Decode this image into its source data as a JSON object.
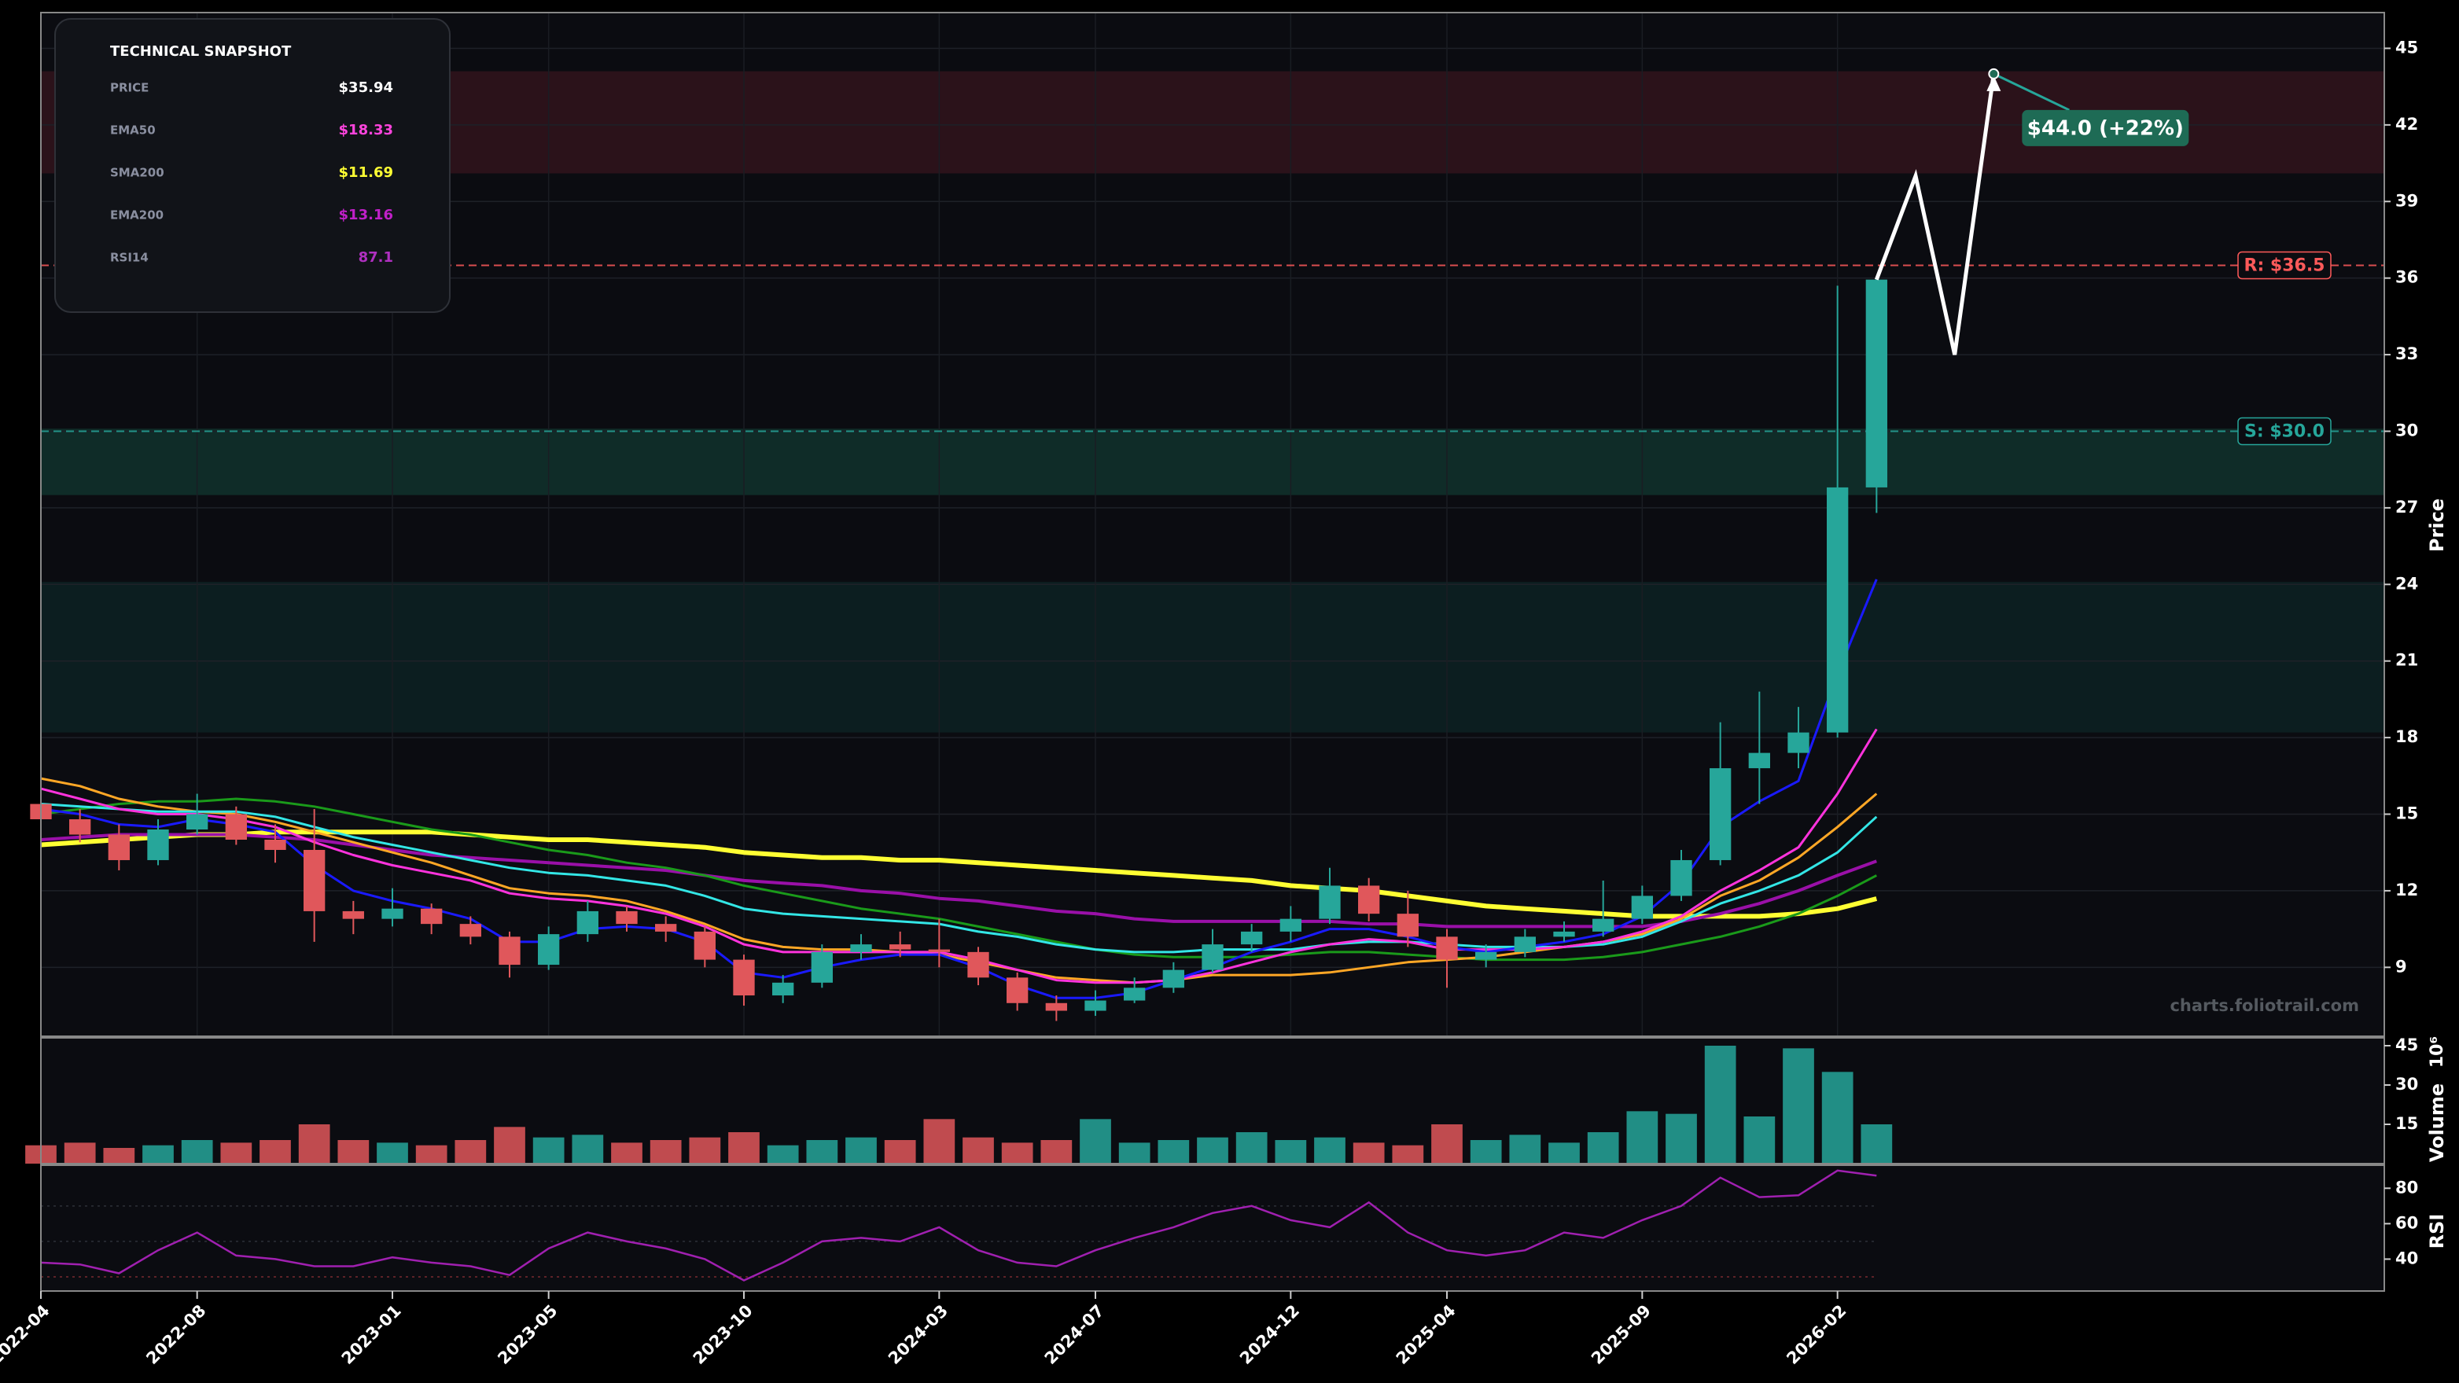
{
  "chart_data": {
    "type": "candlestick",
    "ylabel": "Price",
    "watermark": "charts.foliotrail.com",
    "up_color": "#26a69a",
    "down_color": "#e0575b",
    "grid": true,
    "xlim": [
      "2022-04",
      "2027-04"
    ],
    "xticks": [
      "2022-04",
      "2022-08",
      "2023-01",
      "2023-05",
      "2023-10",
      "2024-03",
      "2024-07",
      "2024-12",
      "2025-04",
      "2025-09",
      "2026-02"
    ],
    "ylim": [
      6.3,
      46.4
    ],
    "yticks": [
      9,
      12,
      15,
      18,
      21,
      24,
      27,
      30,
      33,
      36,
      39,
      42,
      45
    ],
    "x": [
      "2022-04",
      "2022-05",
      "2022-06",
      "2022-07",
      "2022-08",
      "2022-09",
      "2022-10",
      "2022-11",
      "2022-12",
      "2023-01",
      "2023-02",
      "2023-03",
      "2023-04",
      "2023-05",
      "2023-06",
      "2023-07",
      "2023-08",
      "2023-09",
      "2023-10",
      "2023-11",
      "2023-12",
      "2024-01",
      "2024-02",
      "2024-03",
      "2024-04",
      "2024-05",
      "2024-06",
      "2024-07",
      "2024-08",
      "2024-09",
      "2024-10",
      "2024-11",
      "2024-12",
      "2025-01",
      "2025-02",
      "2025-03",
      "2025-04",
      "2025-05",
      "2025-06",
      "2025-07",
      "2025-08",
      "2025-09",
      "2025-10",
      "2025-11",
      "2025-12",
      "2026-01",
      "2026-02",
      "2026-03"
    ],
    "candles": [
      [
        15.4,
        15.9,
        14.5,
        14.8
      ],
      [
        14.8,
        15.2,
        13.9,
        14.2
      ],
      [
        14.2,
        14.6,
        12.8,
        13.2
      ],
      [
        13.2,
        14.8,
        13.0,
        14.4
      ],
      [
        14.4,
        15.8,
        14.2,
        15.0
      ],
      [
        15.0,
        15.3,
        13.8,
        14.0
      ],
      [
        14.0,
        14.6,
        13.1,
        13.6
      ],
      [
        13.6,
        15.2,
        10.0,
        11.2
      ],
      [
        11.2,
        11.6,
        10.3,
        10.9
      ],
      [
        10.9,
        12.1,
        10.6,
        11.3
      ],
      [
        11.3,
        11.5,
        10.3,
        10.7
      ],
      [
        10.7,
        11.0,
        9.9,
        10.2
      ],
      [
        10.2,
        10.4,
        8.6,
        9.1
      ],
      [
        9.1,
        10.6,
        8.9,
        10.3
      ],
      [
        10.3,
        11.6,
        10.0,
        11.2
      ],
      [
        11.2,
        11.4,
        10.4,
        10.7
      ],
      [
        10.7,
        11.0,
        10.0,
        10.4
      ],
      [
        10.4,
        10.6,
        9.0,
        9.3
      ],
      [
        9.3,
        9.5,
        7.5,
        7.9
      ],
      [
        7.9,
        8.7,
        7.6,
        8.4
      ],
      [
        8.4,
        9.9,
        8.2,
        9.6
      ],
      [
        9.6,
        10.3,
        9.3,
        9.9
      ],
      [
        9.9,
        10.4,
        9.4,
        9.7
      ],
      [
        9.7,
        10.9,
        9.0,
        9.6
      ],
      [
        9.6,
        9.8,
        8.3,
        8.6
      ],
      [
        8.6,
        8.8,
        7.3,
        7.6
      ],
      [
        7.6,
        7.9,
        6.9,
        7.3
      ],
      [
        7.3,
        8.1,
        7.1,
        7.7
      ],
      [
        7.7,
        8.6,
        7.6,
        8.2
      ],
      [
        8.2,
        9.2,
        8.0,
        8.9
      ],
      [
        8.9,
        10.5,
        8.8,
        9.9
      ],
      [
        9.9,
        10.7,
        9.6,
        10.4
      ],
      [
        10.4,
        11.4,
        10.0,
        10.9
      ],
      [
        10.9,
        12.9,
        10.7,
        12.2
      ],
      [
        12.2,
        12.5,
        10.8,
        11.1
      ],
      [
        11.1,
        12.0,
        9.8,
        10.2
      ],
      [
        10.2,
        10.5,
        8.2,
        9.3
      ],
      [
        9.3,
        9.9,
        9.0,
        9.6
      ],
      [
        9.6,
        10.5,
        9.4,
        10.2
      ],
      [
        10.2,
        10.8,
        10.0,
        10.4
      ],
      [
        10.4,
        12.4,
        10.2,
        10.9
      ],
      [
        10.9,
        12.2,
        10.7,
        11.8
      ],
      [
        11.8,
        13.6,
        11.6,
        13.2
      ],
      [
        13.2,
        18.6,
        13.0,
        16.8
      ],
      [
        16.8,
        19.8,
        15.4,
        17.4
      ],
      [
        17.4,
        19.2,
        16.8,
        18.2
      ],
      [
        18.2,
        35.7,
        18.0,
        27.8
      ],
      [
        27.8,
        36.0,
        26.8,
        35.94
      ]
    ],
    "series": [
      {
        "color": "#ffff33",
        "width": 6,
        "values": [
          13.8,
          13.9,
          14.0,
          14.1,
          14.2,
          14.2,
          14.3,
          14.3,
          14.3,
          14.3,
          14.3,
          14.2,
          14.1,
          14.0,
          14.0,
          13.9,
          13.8,
          13.7,
          13.5,
          13.4,
          13.3,
          13.3,
          13.2,
          13.2,
          13.1,
          13.0,
          12.9,
          12.8,
          12.7,
          12.6,
          12.5,
          12.4,
          12.2,
          12.1,
          12.0,
          11.8,
          11.6,
          11.4,
          11.3,
          11.2,
          11.1,
          11.0,
          11.0,
          11.0,
          11.0,
          11.1,
          11.3,
          11.69
        ]
      },
      {
        "color": "#9a10a8",
        "width": 4,
        "values": [
          14.0,
          14.1,
          14.2,
          14.2,
          14.2,
          14.2,
          14.1,
          14.0,
          13.8,
          13.6,
          13.4,
          13.3,
          13.2,
          13.1,
          13.0,
          12.9,
          12.8,
          12.6,
          12.4,
          12.3,
          12.2,
          12.0,
          11.9,
          11.7,
          11.6,
          11.4,
          11.2,
          11.1,
          10.9,
          10.8,
          10.8,
          10.8,
          10.8,
          10.8,
          10.7,
          10.7,
          10.6,
          10.6,
          10.6,
          10.6,
          10.6,
          10.6,
          10.8,
          11.1,
          11.5,
          12.0,
          12.6,
          13.16
        ]
      },
      {
        "color": "#1a9a1a",
        "width": 3,
        "values": [
          15.0,
          15.2,
          15.4,
          15.5,
          15.5,
          15.6,
          15.5,
          15.3,
          15.0,
          14.7,
          14.4,
          14.2,
          13.9,
          13.6,
          13.4,
          13.1,
          12.9,
          12.6,
          12.2,
          11.9,
          11.6,
          11.3,
          11.1,
          10.9,
          10.6,
          10.3,
          10.0,
          9.7,
          9.5,
          9.4,
          9.4,
          9.4,
          9.5,
          9.6,
          9.6,
          9.5,
          9.4,
          9.3,
          9.3,
          9.3,
          9.4,
          9.6,
          9.9,
          10.2,
          10.6,
          11.1,
          11.8,
          12.6
        ]
      },
      {
        "color": "#ffa726",
        "width": 3,
        "values": [
          16.4,
          16.1,
          15.6,
          15.3,
          15.1,
          15.0,
          14.7,
          14.3,
          13.9,
          13.5,
          13.1,
          12.6,
          12.1,
          11.9,
          11.8,
          11.6,
          11.2,
          10.7,
          10.1,
          9.8,
          9.7,
          9.7,
          9.6,
          9.5,
          9.2,
          8.9,
          8.6,
          8.5,
          8.4,
          8.5,
          8.7,
          8.7,
          8.7,
          8.8,
          9.0,
          9.2,
          9.3,
          9.4,
          9.6,
          9.8,
          10.0,
          10.3,
          10.9,
          11.8,
          12.4,
          13.3,
          14.5,
          15.8
        ]
      },
      {
        "color": "#33e6e6",
        "width": 3,
        "values": [
          15.4,
          15.3,
          15.2,
          15.1,
          15.1,
          15.1,
          14.9,
          14.5,
          14.1,
          13.8,
          13.5,
          13.2,
          12.9,
          12.7,
          12.6,
          12.4,
          12.2,
          11.8,
          11.3,
          11.1,
          11.0,
          10.9,
          10.8,
          10.7,
          10.4,
          10.2,
          9.9,
          9.7,
          9.6,
          9.6,
          9.7,
          9.7,
          9.7,
          9.9,
          10.0,
          10.0,
          9.9,
          9.8,
          9.8,
          9.8,
          9.9,
          10.2,
          10.8,
          11.5,
          12.0,
          12.6,
          13.5,
          14.9
        ]
      },
      {
        "color": "#ff33dd",
        "width": 3,
        "values": [
          16.0,
          15.6,
          15.2,
          15.0,
          15.0,
          14.8,
          14.5,
          13.9,
          13.4,
          13.0,
          12.7,
          12.4,
          11.9,
          11.7,
          11.6,
          11.4,
          11.1,
          10.6,
          9.9,
          9.6,
          9.6,
          9.6,
          9.6,
          9.6,
          9.3,
          8.9,
          8.5,
          8.4,
          8.4,
          8.5,
          8.8,
          9.2,
          9.6,
          9.9,
          10.1,
          10.0,
          9.7,
          9.7,
          9.7,
          9.8,
          10.0,
          10.4,
          11.0,
          12.0,
          12.8,
          13.7,
          15.8,
          18.33
        ]
      },
      {
        "color": "#1a1aff",
        "width": 3,
        "values": [
          15.2,
          15.0,
          14.6,
          14.5,
          14.8,
          14.6,
          14.3,
          13.0,
          12.0,
          11.6,
          11.3,
          10.9,
          10.0,
          10.0,
          10.5,
          10.6,
          10.5,
          10.0,
          8.8,
          8.6,
          9.0,
          9.3,
          9.5,
          9.5,
          9.0,
          8.3,
          7.8,
          7.8,
          8.0,
          8.5,
          9.0,
          9.6,
          10.0,
          10.5,
          10.5,
          10.2,
          9.8,
          9.6,
          9.8,
          10.0,
          10.3,
          11.0,
          12.3,
          14.5,
          15.5,
          16.3,
          20.5,
          24.2
        ]
      }
    ],
    "zones": [
      {
        "range": [
          40.1,
          44.1
        ],
        "color": "rgba(130,35,50,0.28)"
      },
      {
        "range": [
          27.5,
          30.1
        ],
        "color": "rgba(25,120,95,0.30)"
      },
      {
        "range": [
          18.2,
          24.1
        ],
        "color": "rgba(20,95,85,0.22)"
      }
    ],
    "levels": [
      {
        "value": 36.5,
        "label": "R: $36.5",
        "color": "#ff5a5a"
      },
      {
        "value": 30.0,
        "label": "S: $30.0",
        "color": "#26a69a"
      }
    ],
    "forecast": {
      "x": [
        "2026-03",
        "2026-04",
        "2026-05",
        "2026-06"
      ],
      "values": [
        35.94,
        40,
        33,
        44
      ],
      "color": "#ffffff",
      "label": "$44.0 (+22%)"
    },
    "snapshot": {
      "title": "TECHNICAL SNAPSHOT",
      "rows": [
        {
          "label": "PRICE",
          "value": "$35.94",
          "color": "#ffffff"
        },
        {
          "label": "EMA50",
          "value": "$18.33",
          "color": "#ff44dd"
        },
        {
          "label": "SMA200",
          "value": "$11.69",
          "color": "#ffff33"
        },
        {
          "label": "EMA200",
          "value": "$13.16",
          "color": "#c020c8"
        },
        {
          "label": "RSI14",
          "value": "87.1",
          "color": "#b030c0"
        }
      ]
    },
    "volume": {
      "ylabel": "Volume",
      "offset": "10⁶",
      "ylim": [
        0,
        48
      ],
      "yticks": [
        15,
        30,
        45
      ],
      "values": [
        7,
        8,
        6,
        7,
        9,
        8,
        9,
        15,
        9,
        8,
        7,
        9,
        14,
        10,
        11,
        8,
        9,
        10,
        12,
        7,
        9,
        10,
        9,
        17,
        10,
        8,
        9,
        17,
        8,
        9,
        10,
        12,
        9,
        10,
        8,
        7,
        15,
        9,
        11,
        8,
        12,
        20,
        19,
        45,
        18,
        44,
        35,
        15
      ]
    },
    "rsi": {
      "ylabel": "RSI",
      "color": "#a020b0",
      "ylim": [
        22,
        93
      ],
      "yticks": [
        40,
        60,
        80
      ],
      "guides": [
        30,
        50,
        70
      ],
      "values": [
        38,
        37,
        32,
        45,
        55,
        42,
        40,
        36,
        36,
        41,
        38,
        36,
        31,
        46,
        55,
        50,
        46,
        40,
        28,
        38,
        50,
        52,
        50,
        58,
        45,
        38,
        36,
        45,
        52,
        58,
        66,
        70,
        62,
        58,
        72,
        55,
        45,
        42,
        45,
        55,
        52,
        62,
        70,
        86,
        75,
        76,
        90,
        87.1
      ]
    }
  }
}
